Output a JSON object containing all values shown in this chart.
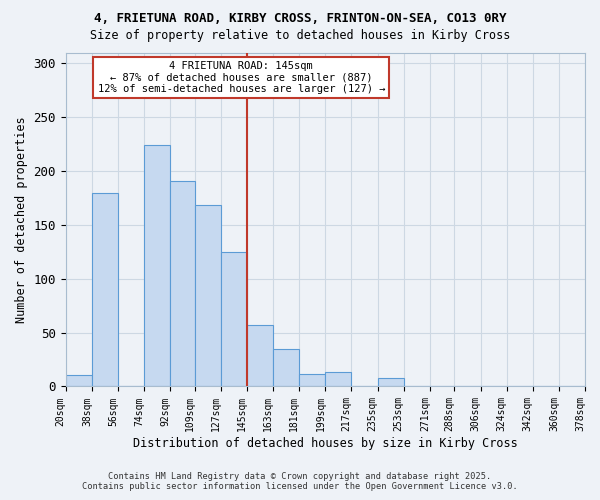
{
  "title": "4, FRIETUNA ROAD, KIRBY CROSS, FRINTON-ON-SEA, CO13 0RY",
  "subtitle": "Size of property relative to detached houses in Kirby Cross",
  "xlabel": "Distribution of detached houses by size in Kirby Cross",
  "ylabel": "Number of detached properties",
  "bar_color": "#c6d9f0",
  "bar_edge_color": "#5b9bd5",
  "bin_labels": [
    "20sqm",
    "38sqm",
    "56sqm",
    "74sqm",
    "92sqm",
    "109sqm",
    "127sqm",
    "145sqm",
    "163sqm",
    "181sqm",
    "199sqm",
    "217sqm",
    "235sqm",
    "253sqm",
    "271sqm",
    "288sqm",
    "306sqm",
    "324sqm",
    "342sqm",
    "360sqm",
    "378sqm"
  ],
  "bin_left_edges": [
    20,
    38,
    56,
    74,
    92,
    109,
    127,
    145,
    163,
    181,
    199,
    217,
    235,
    253,
    271,
    288,
    306,
    324,
    342,
    360
  ],
  "bar_heights": [
    11,
    180,
    0,
    224,
    191,
    168,
    125,
    57,
    35,
    12,
    13,
    0,
    8,
    0,
    0,
    0,
    0,
    0,
    0,
    0
  ],
  "bin_width": 18,
  "vline_x": 145,
  "vline_color": "#c0392b",
  "annotation_line1": "4 FRIETUNA ROAD: 145sqm",
  "annotation_line2": "← 87% of detached houses are smaller (887)",
  "annotation_line3": "12% of semi-detached houses are larger (127) →",
  "annotation_box_color": "#ffffff",
  "annotation_box_edge": "#c0392b",
  "ylim": [
    0,
    310
  ],
  "yticks": [
    0,
    50,
    100,
    150,
    200,
    250,
    300
  ],
  "grid_color": "#cdd8e3",
  "bg_color": "#eef2f7",
  "footer_line1": "Contains HM Land Registry data © Crown copyright and database right 2025.",
  "footer_line2": "Contains public sector information licensed under the Open Government Licence v3.0."
}
